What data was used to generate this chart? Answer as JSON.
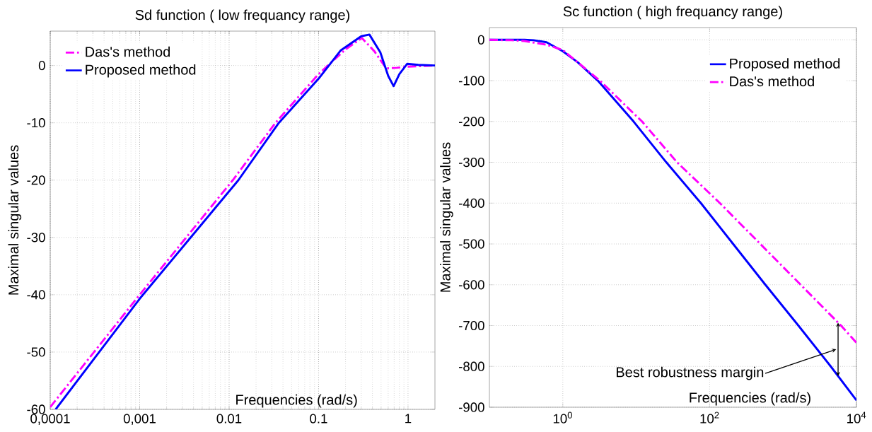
{
  "chart_data": [
    {
      "type": "line",
      "title": "Sd function ( low frequancy range)",
      "xlabel": "Frequencies (rad/s)",
      "ylabel": "Maximal singular values",
      "log": "x",
      "grid": true,
      "legend": "top left",
      "xlim": [
        0.0001,
        2
      ],
      "ylim": [
        -60,
        6
      ],
      "xticks": [
        {
          "value": 0.0001,
          "label": "0,0001"
        },
        {
          "value": 0.001,
          "label": "0,001"
        },
        0.01,
        0.1,
        1
      ],
      "yticks": [
        -60,
        -50,
        -40,
        -30,
        -20,
        -10,
        0
      ],
      "series": [
        {
          "name": "Das's method",
          "color": "#ff00ff",
          "line_style": "dashdot",
          "x": [
            0.0001,
            0.001,
            0.011,
            0.033,
            0.1,
            0.2,
            0.305,
            0.42,
            0.57,
            0.75,
            1,
            2
          ],
          "values": [
            -59.6,
            -40,
            -20,
            -10,
            -1.5,
            2.8,
            4.8,
            2.5,
            -0.5,
            -0.4,
            -0.2,
            0
          ]
        },
        {
          "name": "Proposed method",
          "color": "#0000ff",
          "line_style": "solid",
          "x": [
            0.000115,
            0.001,
            0.0127,
            0.036,
            0.1,
            0.176,
            0.3,
            0.37,
            0.49,
            0.6,
            0.69,
            0.8,
            0.98,
            1.3,
            2
          ],
          "values": [
            -60,
            -40.7,
            -20,
            -10,
            -2.3,
            2.6,
            5.1,
            5.4,
            2.3,
            -1.8,
            -3.6,
            -1.5,
            0.3,
            0.1,
            0
          ]
        }
      ]
    },
    {
      "type": "line",
      "title": "Sc function ( high frequancy range)",
      "xlabel": "Frequencies (rad/s)",
      "ylabel": "Maximal singular values",
      "log": "x",
      "grid": true,
      "legend": "top right",
      "xlim": [
        0.1,
        10000
      ],
      "ylim": [
        -900,
        30
      ],
      "xticks": [
        {
          "value": 1,
          "label": "10$^{0}$"
        },
        {
          "value": 100,
          "label": "10$^{2}$"
        },
        {
          "value": 10000,
          "label": "10$^{4}$"
        }
      ],
      "yticks": [
        -900,
        -800,
        -700,
        -600,
        -500,
        -400,
        -300,
        -200,
        -100,
        0
      ],
      "annotations": [
        "Best robustness margin"
      ],
      "series": [
        {
          "name": "Proposed method",
          "color": "#0000ff",
          "line_style": "solid",
          "x": [
            0.1,
            0.3,
            0.4,
            0.6,
            1,
            1.6,
            3,
            9.2,
            25.7,
            76,
            209,
            575,
            1620,
            4470,
            10000
          ],
          "values": [
            0,
            0,
            -1,
            -6,
            -28,
            -55,
            -100,
            -200,
            -300,
            -400,
            -500,
            -600,
            -700,
            -800,
            -883
          ]
        },
        {
          "name": "Das's method",
          "color": "#ff00ff",
          "line_style": "dashdot",
          "x": [
            0.1,
            0.2,
            0.3,
            0.6,
            1,
            3.2,
            12,
            36,
            138,
            490,
            1740,
            6170,
            10000
          ],
          "values": [
            0,
            -1,
            -3,
            -12,
            -25,
            -100,
            -200,
            -300,
            -400,
            -500,
            -600,
            -700,
            -742
          ]
        }
      ]
    }
  ]
}
